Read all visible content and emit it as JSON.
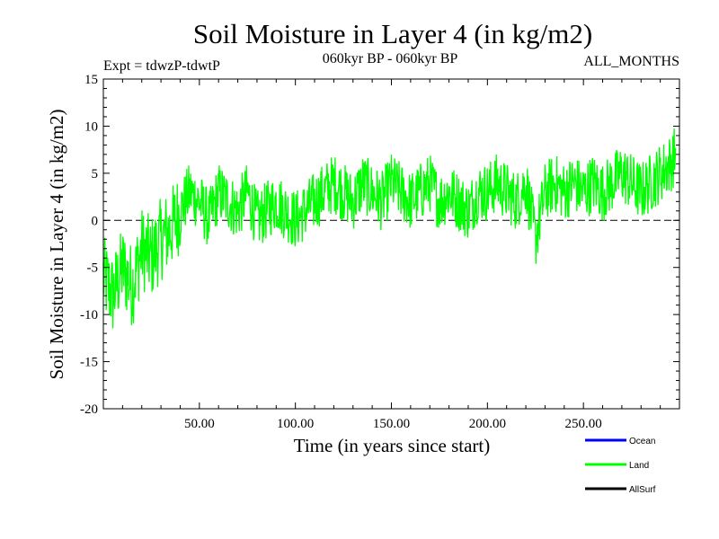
{
  "chart_data": {
    "type": "line",
    "title": "Soil Moisture in Layer 4 (in kg/m2)",
    "subtitle_left": "Expt = tdwzP-tdwtP",
    "subtitle_center": "060kyr BP - 060kyr BP",
    "subtitle_right": "ALL_MONTHS",
    "xlabel": "Time (in years since start)",
    "ylabel": "Soil Moisture in Layer 4 (in kg/m2)",
    "xlim": [
      0,
      300
    ],
    "ylim": [
      -20,
      15
    ],
    "x_ticks": [
      50,
      100,
      150,
      200,
      250
    ],
    "x_tick_labels": [
      "50.00",
      "100.00",
      "150.00",
      "200.00",
      "250.00"
    ],
    "y_ticks": [
      -20,
      -15,
      -10,
      -5,
      0,
      5,
      10,
      15
    ],
    "y_tick_labels": [
      "-20",
      "-15",
      "-10",
      "-5",
      "0",
      "5",
      "10",
      "15"
    ],
    "zero_line": {
      "y": 0,
      "style": "dashed",
      "color": "#000000"
    },
    "legend": {
      "placement": "bottom-right",
      "entries": [
        {
          "name": "Ocean",
          "label": "Ocean",
          "color": "#0000ff"
        },
        {
          "name": "Land",
          "label": "Land",
          "color": "#00ff00"
        },
        {
          "name": "AllSurf",
          "label": "AllSurf",
          "color": "#000000"
        }
      ]
    },
    "series": [
      {
        "name": "Land",
        "color": "#00ff00",
        "x": [
          0,
          5,
          10,
          15,
          20,
          25,
          30,
          35,
          40,
          45,
          50,
          55,
          60,
          65,
          70,
          75,
          80,
          85,
          90,
          95,
          100,
          105,
          110,
          115,
          120,
          125,
          130,
          135,
          140,
          145,
          150,
          155,
          160,
          165,
          170,
          175,
          180,
          185,
          190,
          195,
          200,
          205,
          210,
          215,
          220,
          225,
          230,
          235,
          240,
          245,
          250,
          255,
          260,
          265,
          270,
          275,
          280,
          285,
          290,
          295,
          298
        ],
        "y": [
          -6,
          -8,
          -5,
          -7,
          -3,
          -4,
          -2,
          -1,
          1,
          3,
          2,
          0,
          3,
          2,
          1,
          3,
          0,
          1,
          2,
          1,
          0,
          1,
          2,
          3,
          4,
          3,
          2,
          4,
          3,
          2,
          4,
          3,
          2,
          3,
          4,
          2,
          3,
          2,
          1,
          3,
          3,
          4,
          3,
          2,
          4,
          -2,
          3,
          4,
          3,
          4,
          3,
          4,
          3,
          4,
          5,
          4,
          3,
          4,
          5,
          6,
          7
        ],
        "noise_amplitude": 3.2
      }
    ]
  }
}
